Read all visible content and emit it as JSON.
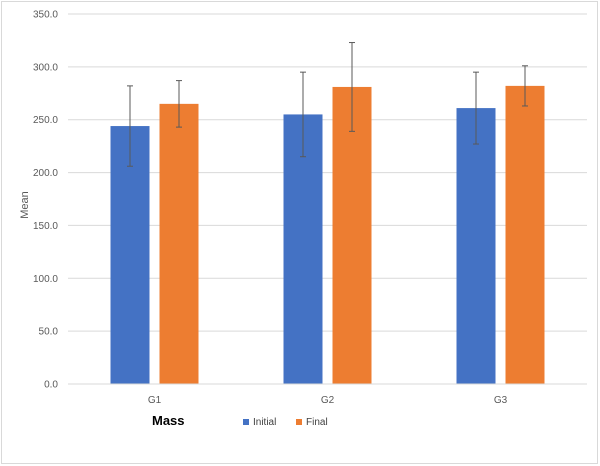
{
  "chart_data": {
    "type": "bar",
    "title": "",
    "xlabel": "Mass",
    "ylabel": "Mean",
    "categories": [
      "G1",
      "G2",
      "G3"
    ],
    "ylim": [
      0,
      350
    ],
    "yticks": [
      "0.0",
      "50.0",
      "100.0",
      "150.0",
      "200.0",
      "250.0",
      "300.0",
      "350.0"
    ],
    "grid": true,
    "legend_position": "bottom",
    "series": [
      {
        "name": "Initial",
        "color": "#4472c4",
        "values": [
          244,
          255,
          261
        ],
        "error": [
          38,
          40,
          34
        ]
      },
      {
        "name": "Final",
        "color": "#ed7d31",
        "values": [
          265,
          281,
          282
        ],
        "error": [
          22,
          42,
          19
        ]
      }
    ]
  }
}
